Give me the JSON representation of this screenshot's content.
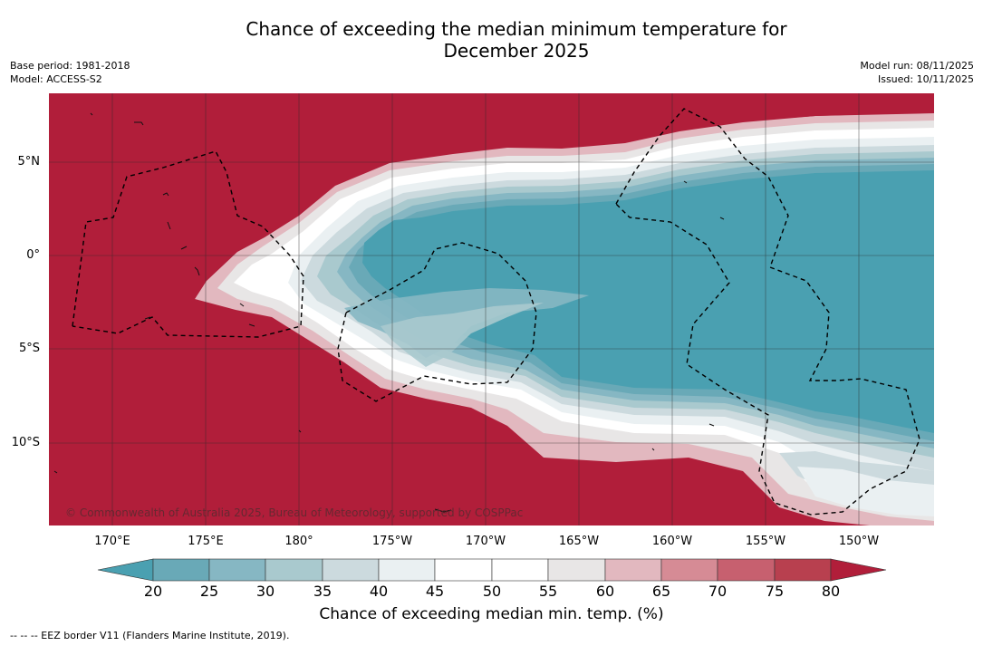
{
  "title_line1": "Chance of exceeding the median minimum temperature for",
  "title_line2": "December 2025",
  "base_period": "Base period: 1981-2018",
  "model": "Model: ACCESS-S2",
  "model_run": "Model run: 08/11/2025",
  "issued": "Issued: 10/11/2025",
  "copyright": "© Commonwealth of Australia 2025, Bureau of Meteorology, supported by COSPPac",
  "footnote": "--  --  -- EEZ border V11 (Flanders Marine Institute, 2019).",
  "latitudes": [
    "5°N",
    "0°",
    "5°S",
    "10°S"
  ],
  "longitudes": [
    "170°E",
    "175°E",
    "180°",
    "175°W",
    "170°W",
    "165°W",
    "160°W",
    "155°W",
    "150°W"
  ],
  "colorbar": {
    "ticks": [
      "20",
      "25",
      "30",
      "35",
      "40",
      "45",
      "50",
      "55",
      "60",
      "65",
      "70",
      "75",
      "80"
    ],
    "label": "Chance of exceeding median min. temp. (%)",
    "colors": {
      "below20": "#4aa0b1",
      "c20_25": "#69a9b7",
      "c25_30": "#86b7c3",
      "c30_35": "#a9c9ce",
      "c35_40": "#ccdade",
      "c40_45": "#eaf0f2",
      "c45_50": "#ffffff",
      "c50_55": "#ffffff",
      "c55_60": "#e8e6e6",
      "c60_65": "#e2b8bf",
      "c65_70": "#d68b95",
      "c70_75": "#c7606f",
      "c75_80": "#b8404f",
      "above80": "#b11e3a"
    }
  }
}
